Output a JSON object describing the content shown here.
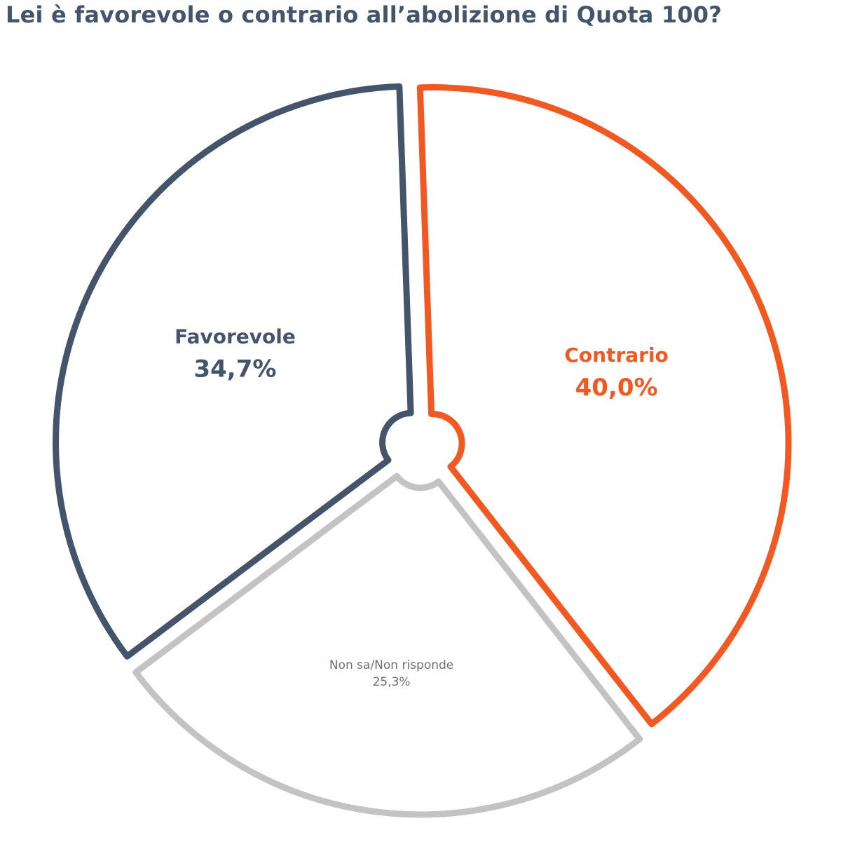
{
  "chart_data": {
    "type": "pie",
    "title": "Lei è favorevole o contrario all’abolizione di Quota 100?",
    "slices": [
      {
        "name": "Contrario",
        "value": 40.0,
        "label": "40,0%",
        "color": "#f05a22"
      },
      {
        "name": "Non sa/Non risponde",
        "value": 25.3,
        "label": "25,3%",
        "color": "#c3c3c3"
      },
      {
        "name": "Favorevole",
        "value": 34.7,
        "label": "34,7%",
        "color": "#44546a"
      }
    ]
  }
}
